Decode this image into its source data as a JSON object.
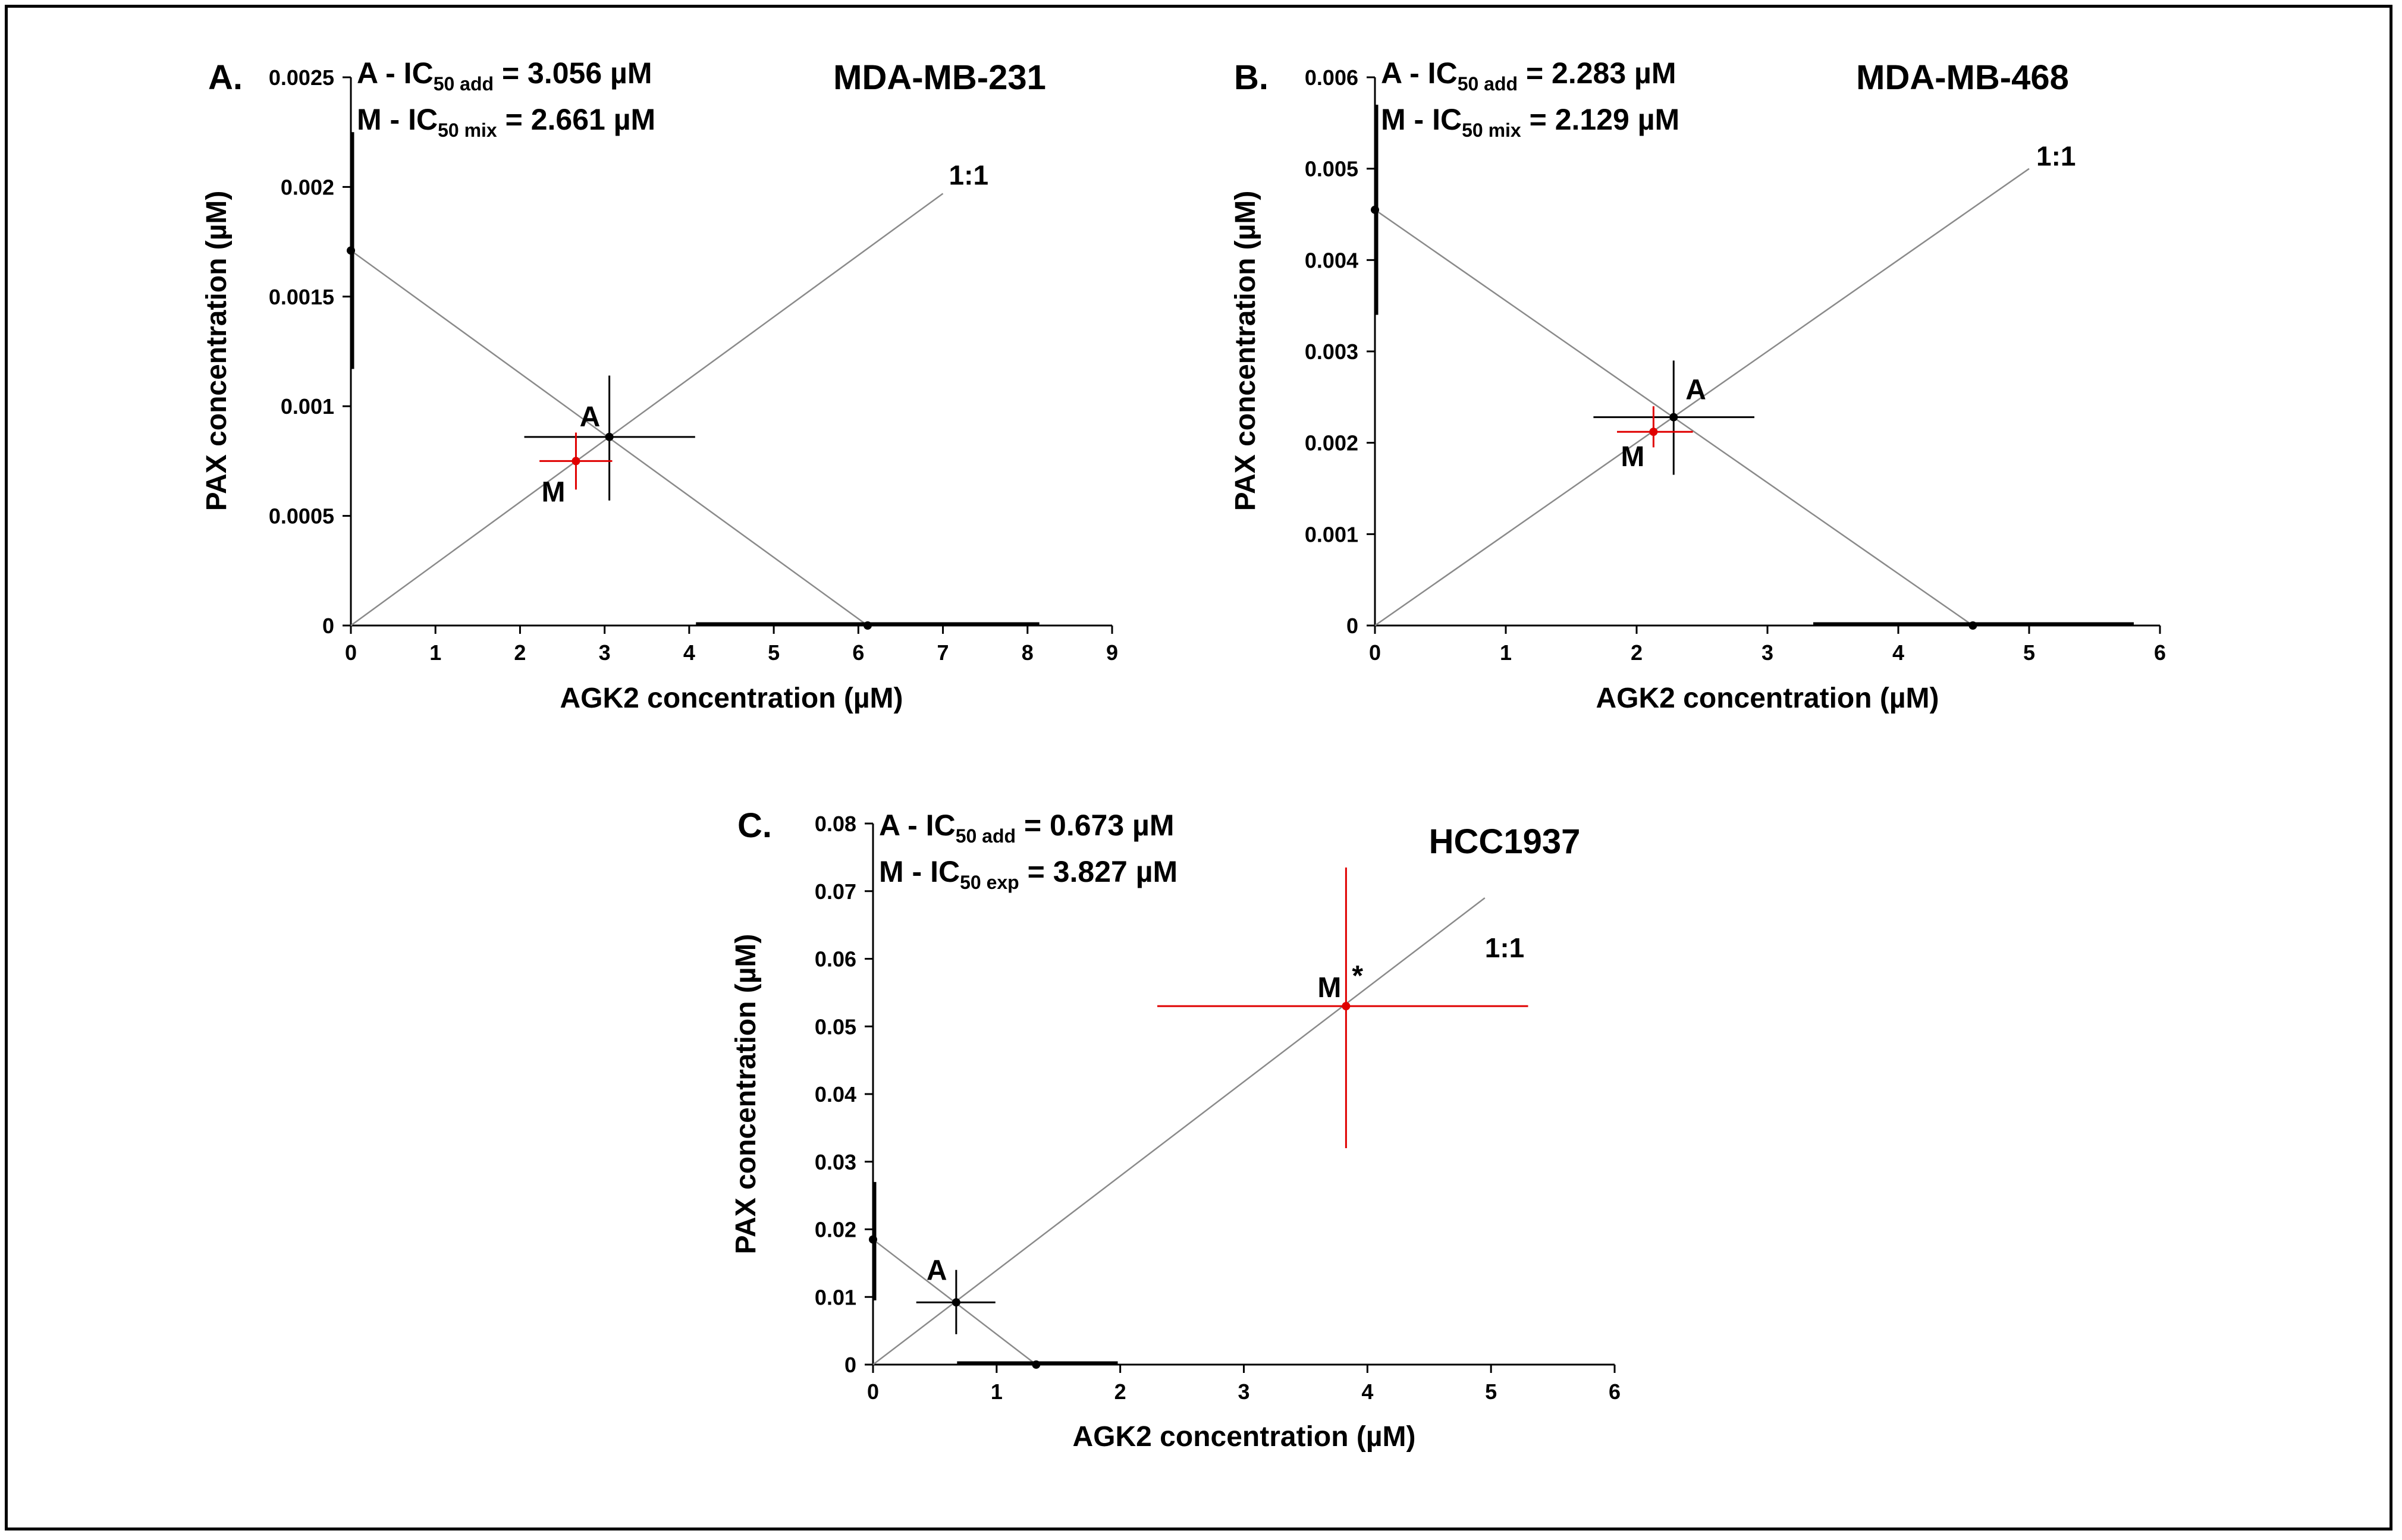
{
  "chart_data": [
    {
      "type": "scatter",
      "panel_label": "A.",
      "title": "MDA-MB-231",
      "xlabel": "AGK2 concentration (µM)",
      "ylabel": "PAX concentration (µM)",
      "xlim": [
        0,
        9
      ],
      "ylim": [
        0,
        0.0025
      ],
      "x_ticks": [
        "0",
        "1",
        "2",
        "3",
        "4",
        "5",
        "6",
        "7",
        "8",
        "9"
      ],
      "y_ticks": [
        "0",
        "0.0005",
        "0.001",
        "0.0015",
        "0.002",
        "0.0025"
      ],
      "annotations": [
        {
          "prefix": "A - IC",
          "sub": "50 add",
          "suffix": " = 3.056 µM"
        },
        {
          "prefix": "M - IC",
          "sub": "50 mix",
          "suffix": " = 2.661 µM"
        }
      ],
      "ratio_label": "1:1",
      "ratio_line_end": {
        "x": 7.0,
        "y": 0.00197
      },
      "isobole": {
        "x_intercept": 6.11,
        "y_intercept": 0.00171
      },
      "x_intercept_error": [
        4.08,
        8.14
      ],
      "y_intercept_error": [
        0.00117,
        0.00225
      ],
      "points": [
        {
          "label": "A",
          "x": 3.056,
          "y": 0.00086,
          "x_err": [
            2.05,
            4.07
          ],
          "y_err": [
            0.00057,
            0.00114
          ],
          "color": "#000000"
        },
        {
          "label": "M",
          "x": 2.661,
          "y": 0.00075,
          "x_err": [
            2.23,
            3.09
          ],
          "y_err": [
            0.00062,
            0.00088
          ],
          "color": "#e00000"
        }
      ]
    },
    {
      "type": "scatter",
      "panel_label": "B.",
      "title": "MDA-MB-468",
      "xlabel": "AGK2 concentration (µM)",
      "ylabel": "PAX concentration (µM)",
      "xlim": [
        0,
        6
      ],
      "ylim": [
        0,
        0.006
      ],
      "x_ticks": [
        "0",
        "1",
        "2",
        "3",
        "4",
        "5",
        "6"
      ],
      "y_ticks": [
        "0",
        "0.001",
        "0.002",
        "0.003",
        "0.004",
        "0.005",
        "0.006"
      ],
      "annotations": [
        {
          "prefix": "A - IC",
          "sub": "50 add",
          "suffix": " = 2.283 µM"
        },
        {
          "prefix": "M - IC",
          "sub": "50 mix",
          "suffix": " = 2.129 µM"
        }
      ],
      "ratio_label": "1:1",
      "ratio_line_end": {
        "x": 5.0,
        "y": 0.005
      },
      "isobole": {
        "x_intercept": 4.57,
        "y_intercept": 0.00455
      },
      "x_intercept_error": [
        3.35,
        5.8
      ],
      "y_intercept_error": [
        0.0034,
        0.0057
      ],
      "points": [
        {
          "label": "A",
          "x": 2.283,
          "y": 0.00228,
          "x_err": [
            1.67,
            2.9
          ],
          "y_err": [
            0.00165,
            0.0029
          ],
          "color": "#000000"
        },
        {
          "label": "M",
          "x": 2.129,
          "y": 0.00212,
          "x_err": [
            1.85,
            2.43
          ],
          "y_err": [
            0.00195,
            0.0024
          ],
          "color": "#e00000"
        }
      ]
    },
    {
      "type": "scatter",
      "panel_label": "C.",
      "title": "HCC1937",
      "xlabel": "AGK2 concentration (µM)",
      "ylabel": "PAX concentration (µM)",
      "xlim": [
        0,
        6
      ],
      "ylim": [
        0,
        0.08
      ],
      "x_ticks": [
        "0",
        "1",
        "2",
        "3",
        "4",
        "5",
        "6"
      ],
      "y_ticks": [
        "0",
        "0.01",
        "0.02",
        "0.03",
        "0.04",
        "0.05",
        "0.06",
        "0.07",
        "0.08"
      ],
      "annotations": [
        {
          "prefix": "A - IC",
          "sub": "50 add",
          "suffix": " = 0.673 µM"
        },
        {
          "prefix": "M - IC",
          "sub": "50 exp",
          "suffix": " = 3.827 µM"
        }
      ],
      "ratio_label": "1:1",
      "ratio_line_end": {
        "x": 4.95,
        "y": 0.069
      },
      "isobole": {
        "x_intercept": 1.32,
        "y_intercept": 0.0185
      },
      "x_intercept_error": [
        0.68,
        1.98
      ],
      "y_intercept_error": [
        0.0095,
        0.027
      ],
      "points": [
        {
          "label": "A",
          "x": 0.673,
          "y": 0.0092,
          "x_err": [
            0.35,
            0.99
          ],
          "y_err": [
            0.0045,
            0.014
          ],
          "color": "#000000"
        },
        {
          "label": "M",
          "x": 3.827,
          "y": 0.053,
          "x_err": [
            2.3,
            5.3
          ],
          "y_err": [
            0.032,
            0.0735
          ],
          "color": "#e00000",
          "significance": "*"
        }
      ]
    }
  ]
}
